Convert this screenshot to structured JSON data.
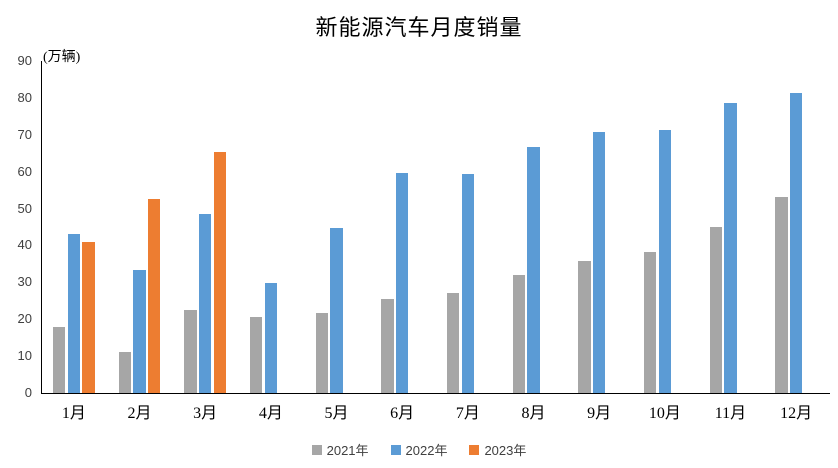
{
  "chart_data": {
    "type": "bar",
    "title": "新能源汽车月度销量",
    "y_unit": "(万辆)",
    "categories": [
      "1月",
      "2月",
      "3月",
      "4月",
      "5月",
      "6月",
      "7月",
      "8月",
      "9月",
      "10月",
      "11月",
      "12月"
    ],
    "series": [
      {
        "name": "2021年",
        "color": "#A6A6A6",
        "values": [
          17.9,
          11.0,
          22.6,
          20.6,
          21.7,
          25.6,
          27.1,
          32.1,
          35.7,
          38.3,
          45.0,
          53.1
        ]
      },
      {
        "name": "2022年",
        "color": "#5B9BD5",
        "values": [
          43.1,
          33.4,
          48.4,
          29.9,
          44.7,
          59.6,
          59.3,
          66.6,
          70.8,
          71.4,
          78.6,
          81.4
        ]
      },
      {
        "name": "2023年",
        "color": "#ED7D31",
        "values": [
          40.8,
          52.5,
          65.3,
          null,
          null,
          null,
          null,
          null,
          null,
          null,
          null,
          null
        ]
      }
    ],
    "ylim": [
      0,
      90
    ],
    "ytick_step": 10,
    "grid": false,
    "legend_position": "bottom"
  }
}
